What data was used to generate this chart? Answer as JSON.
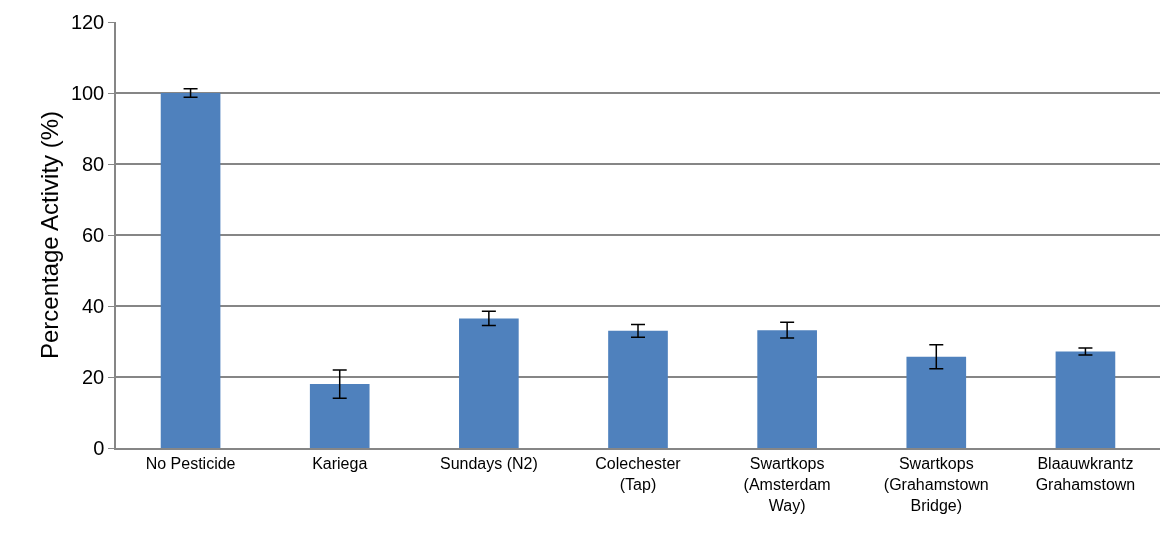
{
  "chart_data": {
    "type": "bar",
    "ylabel": "Percentage Activity (%)",
    "categories": [
      "No Pesticide",
      "Kariega",
      "Sundays (N2)",
      "Colechester (Tap)",
      "Swartkops (Amsterdam Way)",
      "Swartkops (Grahamstown Bridge)",
      "Blaauwkrantz Grahamstown"
    ],
    "values": [
      100,
      18,
      36.5,
      33,
      33.2,
      25.7,
      27.2
    ],
    "errors": [
      1.2,
      4,
      2,
      1.8,
      2.2,
      3.4,
      1
    ],
    "color": "#4f81bd",
    "ylim": [
      0,
      120
    ],
    "yticks": [
      0,
      20,
      40,
      60,
      80,
      100,
      120
    ],
    "grid": "y"
  }
}
